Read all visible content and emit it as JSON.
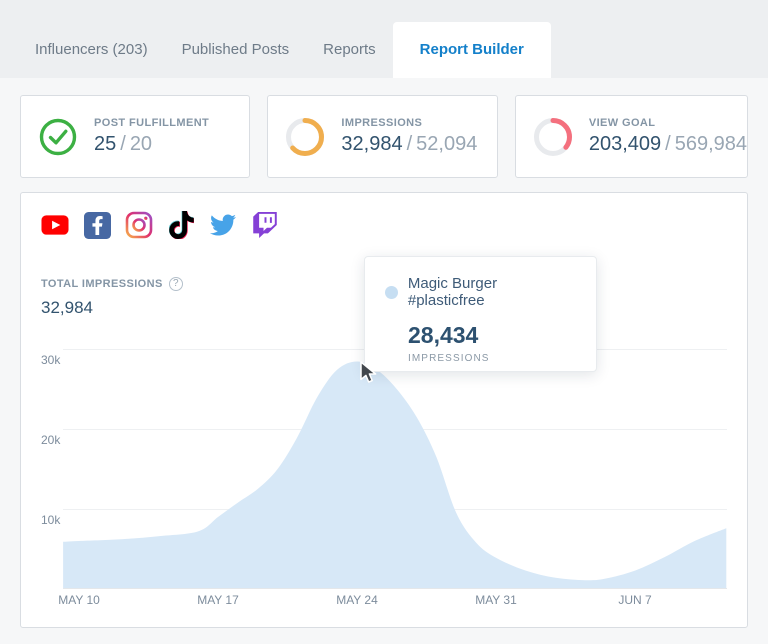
{
  "tabs": [
    {
      "label": "Influencers (203)",
      "active": false
    },
    {
      "label": "Published Posts",
      "active": false
    },
    {
      "label": "Reports",
      "active": false
    },
    {
      "label": "Report Builder",
      "active": true
    }
  ],
  "separator": "/",
  "stats": [
    {
      "label": "POST FULFILLMENT",
      "value": "25",
      "total": "20",
      "icon": "check-circle",
      "color": "#3cb043",
      "percent": 100
    },
    {
      "label": "IMPRESSIONS",
      "value": "32,984",
      "total": "52,094",
      "icon": "donut",
      "color": "#f0ae4e",
      "percent": 63.3
    },
    {
      "label": "VIEW GOAL",
      "value": "203,409",
      "total": "569,984",
      "icon": "donut",
      "color": "#f4707e",
      "percent": 35.7
    }
  ],
  "panel": {
    "platforms": [
      "youtube",
      "facebook",
      "instagram",
      "tiktok",
      "twitter",
      "twitch"
    ],
    "metric": {
      "label": "TOTAL IMPRESSIONS",
      "help": "?",
      "value": "32,984"
    },
    "tooltip": {
      "title": "Magic Burger #plasticfree",
      "value": "28,434",
      "unit": "IMPRESSIONS",
      "dot_color": "#c6def2"
    }
  },
  "colors": {
    "tab_active": "#1480ca",
    "area_fill": "#d7e8f7",
    "value_text": "#32536e",
    "muted_text": "#99a6b3"
  },
  "chart_data": {
    "type": "area",
    "title": "TOTAL IMPRESSIONS",
    "series_name": "Magic Burger #plasticfree",
    "xlabel": "",
    "ylabel": "",
    "x_unit": "days since May 10",
    "points": [
      [
        -0.8,
        5900
      ],
      [
        0,
        6000
      ],
      [
        2,
        6200
      ],
      [
        4,
        6600
      ],
      [
        6,
        7200
      ],
      [
        7,
        9000
      ],
      [
        8,
        10800
      ],
      [
        9,
        12500
      ],
      [
        10,
        15000
      ],
      [
        11,
        19000
      ],
      [
        12,
        24000
      ],
      [
        13,
        27400
      ],
      [
        14,
        28434
      ],
      [
        15,
        27400
      ],
      [
        16,
        25000
      ],
      [
        17,
        21500
      ],
      [
        18,
        16500
      ],
      [
        19,
        9500
      ],
      [
        20,
        5800
      ],
      [
        21,
        3900
      ],
      [
        22.5,
        2300
      ],
      [
        24,
        1400
      ],
      [
        25.5,
        1100
      ],
      [
        26.5,
        1300
      ],
      [
        28,
        2300
      ],
      [
        29.5,
        4000
      ],
      [
        31,
        6000
      ],
      [
        32.6,
        7600
      ]
    ],
    "x_ticks": [
      {
        "day": 0,
        "label": "MAY 10"
      },
      {
        "day": 7,
        "label": "MAY 17"
      },
      {
        "day": 14,
        "label": "MAY 24"
      },
      {
        "day": 21,
        "label": "MAY 31"
      },
      {
        "day": 28,
        "label": "JUN 7"
      }
    ],
    "y_ticks": [
      {
        "value": 10000,
        "label": "10k"
      },
      {
        "value": 20000,
        "label": "20k"
      },
      {
        "value": 30000,
        "label": "30k"
      }
    ],
    "ylim": [
      0,
      30000
    ],
    "grid": true,
    "legend": false,
    "area_color": "#d7e8f7",
    "highlight": {
      "day": 14,
      "value": 28434,
      "label": "Magic Burger #plasticfree"
    }
  }
}
